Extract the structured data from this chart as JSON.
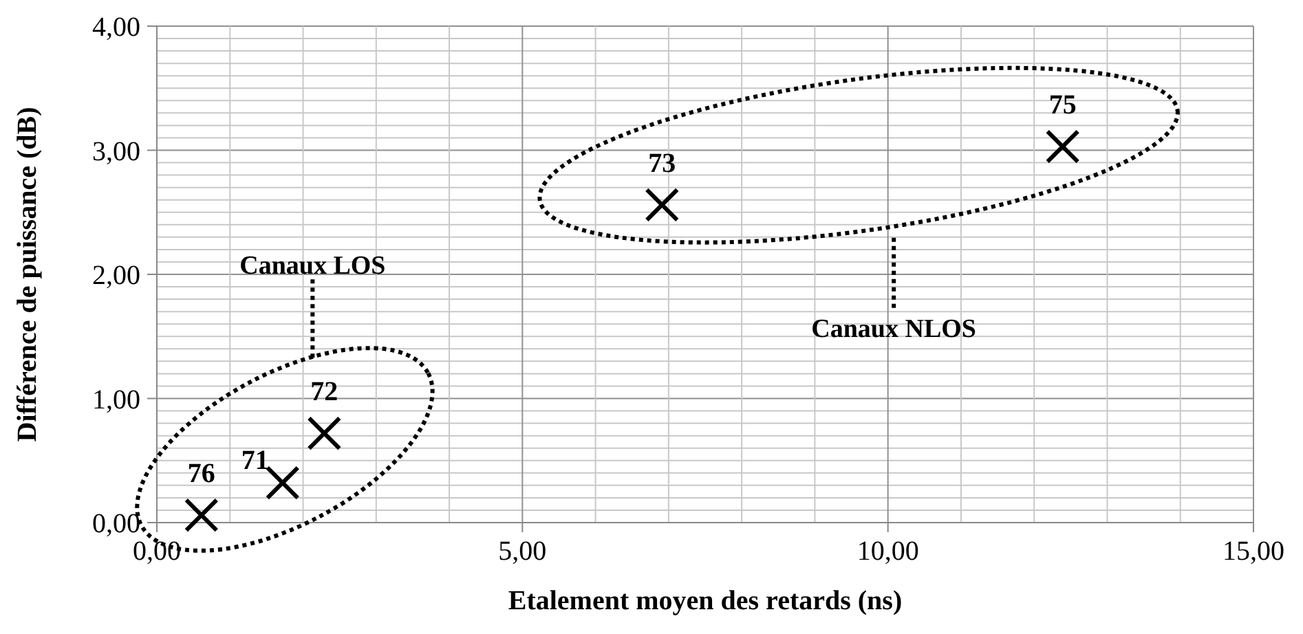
{
  "chart_data": {
    "type": "scatter",
    "xlabel": "Etalement moyen des retards (ns)",
    "ylabel": "Différence de puissance (dB)",
    "x": [
      0.61,
      1.72,
      2.29,
      6.91,
      12.39
    ],
    "values": [
      0.06,
      0.32,
      0.72,
      2.56,
      3.03
    ],
    "color": "#000000",
    "marker": "cross",
    "grid": true,
    "xlim": [
      0,
      15
    ],
    "xticks": [
      {
        "value": 0,
        "label": "0,00"
      },
      {
        "value": 1,
        "label": null
      },
      {
        "value": 2,
        "label": null
      },
      {
        "value": 3,
        "label": null
      },
      {
        "value": 4,
        "label": null
      },
      {
        "value": 5,
        "label": "5,00"
      },
      {
        "value": 6,
        "label": null
      },
      {
        "value": 7,
        "label": null
      },
      {
        "value": 8,
        "label": null
      },
      {
        "value": 9,
        "label": null
      },
      {
        "value": 10,
        "label": "10,00"
      },
      {
        "value": 11,
        "label": null
      },
      {
        "value": 12,
        "label": null
      },
      {
        "value": 13,
        "label": null
      },
      {
        "value": 14,
        "label": null
      },
      {
        "value": 15,
        "label": "15,00"
      }
    ],
    "ylim": [
      0,
      4
    ],
    "yticks": [
      {
        "value": 0,
        "label": "0,00"
      },
      {
        "value": 0.1,
        "label": null
      },
      {
        "value": 0.2,
        "label": null
      },
      {
        "value": 0.3,
        "label": null
      },
      {
        "value": 0.4,
        "label": null
      },
      {
        "value": 0.5,
        "label": null
      },
      {
        "value": 0.6,
        "label": null
      },
      {
        "value": 0.7,
        "label": null
      },
      {
        "value": 0.8,
        "label": null
      },
      {
        "value": 0.9,
        "label": null
      },
      {
        "value": 1,
        "label": "1,00"
      },
      {
        "value": 1.1,
        "label": null
      },
      {
        "value": 1.2,
        "label": null
      },
      {
        "value": 1.3,
        "label": null
      },
      {
        "value": 1.4,
        "label": null
      },
      {
        "value": 1.5,
        "label": null
      },
      {
        "value": 1.6,
        "label": null
      },
      {
        "value": 1.7,
        "label": null
      },
      {
        "value": 1.8,
        "label": null
      },
      {
        "value": 1.9,
        "label": null
      },
      {
        "value": 2,
        "label": "2,00"
      },
      {
        "value": 2.1,
        "label": null
      },
      {
        "value": 2.2,
        "label": null
      },
      {
        "value": 2.3,
        "label": null
      },
      {
        "value": 2.4,
        "label": null
      },
      {
        "value": 2.5,
        "label": null
      },
      {
        "value": 2.6,
        "label": null
      },
      {
        "value": 2.7,
        "label": null
      },
      {
        "value": 2.8,
        "label": null
      },
      {
        "value": 2.9,
        "label": null
      },
      {
        "value": 3,
        "label": "3,00"
      },
      {
        "value": 3.1,
        "label": null
      },
      {
        "value": 3.2,
        "label": null
      },
      {
        "value": 3.3,
        "label": null
      },
      {
        "value": 3.4,
        "label": null
      },
      {
        "value": 3.5,
        "label": null
      },
      {
        "value": 3.6,
        "label": null
      },
      {
        "value": 3.7,
        "label": null
      },
      {
        "value": 3.8,
        "label": null
      },
      {
        "value": 3.9,
        "label": null
      },
      {
        "value": 4,
        "label": "4,00"
      }
    ],
    "annotations": [
      "Canaux LOS",
      "Canaux NLOS",
      {
        "text": "76",
        "x": 0.61,
        "y": 0.06
      },
      {
        "text": "71",
        "x": 1.72,
        "y": 0.32
      },
      {
        "text": "72",
        "x": 2.29,
        "y": 0.72
      },
      {
        "text": "73",
        "x": 6.91,
        "y": 2.56
      },
      {
        "text": "75",
        "x": 12.39,
        "y": 3.03
      }
    ]
  }
}
